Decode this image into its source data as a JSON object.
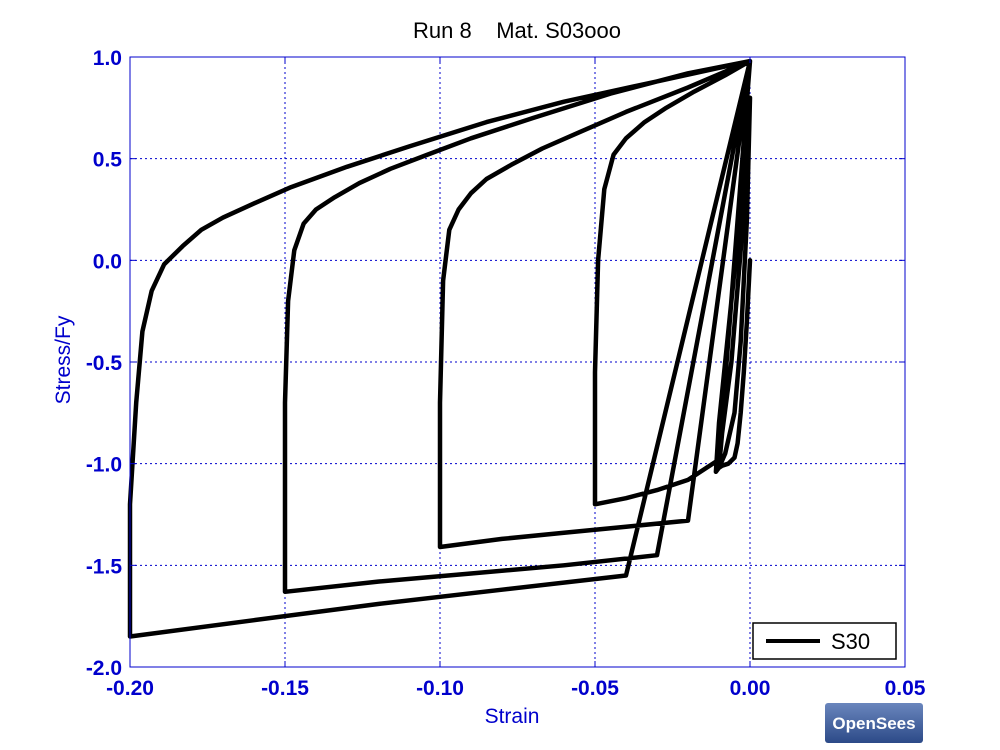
{
  "chart_data": {
    "type": "line",
    "title": "Run 8    Mat. S03ooo",
    "xlabel": "Strain",
    "ylabel": "Stress/Fy",
    "xlim": [
      -0.2,
      0.05
    ],
    "ylim": [
      -2.0,
      1.0
    ],
    "x_ticks": [
      "-0.20",
      "-0.15",
      "-0.10",
      "-0.05",
      "0.00",
      "0.05"
    ],
    "y_ticks": [
      "1.0",
      "0.5",
      "0.0",
      "-0.5",
      "-1.0",
      "-1.5",
      "-2.0"
    ],
    "x_tick_values": [
      -0.2,
      -0.15,
      -0.1,
      -0.05,
      0.0,
      0.05
    ],
    "y_tick_values": [
      1.0,
      0.5,
      0.0,
      -0.5,
      -1.0,
      -1.5,
      -2.0
    ],
    "grid": true,
    "legend": "bottom-right",
    "colors": {
      "axis_text": "#0000cc",
      "grid": "#0000cc",
      "series": "#000000",
      "logo": "#3a5a96"
    },
    "series": [
      {
        "name": "S30",
        "x": [
          0.0,
          -0.001,
          -0.002,
          -0.003,
          -0.004,
          -0.005,
          -0.007,
          -0.009,
          -0.01,
          -0.009,
          -0.006,
          -0.003,
          -0.001,
          0.0,
          -0.001,
          -0.003,
          -0.005,
          -0.008,
          -0.01,
          -0.011,
          -0.01,
          -0.007,
          -0.004,
          -0.002,
          -0.001,
          0.0,
          -0.01,
          -0.02,
          -0.03,
          -0.04,
          -0.05,
          -0.05,
          -0.049,
          -0.047,
          -0.044,
          -0.04,
          -0.034,
          -0.027,
          -0.018,
          -0.008,
          0.0,
          -0.02,
          -0.04,
          -0.06,
          -0.08,
          -0.1,
          -0.1,
          -0.099,
          -0.097,
          -0.094,
          -0.09,
          -0.085,
          -0.077,
          -0.067,
          -0.055,
          -0.04,
          -0.02,
          0.0,
          -0.03,
          -0.06,
          -0.09,
          -0.12,
          -0.15,
          -0.15,
          -0.149,
          -0.147,
          -0.144,
          -0.14,
          -0.134,
          -0.126,
          -0.116,
          -0.104,
          -0.09,
          -0.07,
          -0.045,
          -0.02,
          0.0,
          -0.04,
          -0.08,
          -0.12,
          -0.16,
          -0.2,
          -0.2,
          -0.198,
          -0.196,
          -0.193,
          -0.189,
          -0.183,
          -0.177,
          -0.17,
          -0.16,
          -0.148,
          -0.13,
          -0.11,
          -0.085,
          -0.06,
          -0.03,
          0.0
        ],
        "y": [
          0.0,
          -0.3,
          -0.55,
          -0.75,
          -0.9,
          -0.97,
          -1.0,
          -1.01,
          -1.02,
          -0.85,
          -0.5,
          0.05,
          0.5,
          0.8,
          0.2,
          -0.4,
          -0.75,
          -0.95,
          -1.02,
          -1.04,
          -0.8,
          -0.35,
          0.1,
          0.5,
          0.8,
          0.98,
          -0.98,
          -1.08,
          -1.13,
          -1.17,
          -1.2,
          -0.55,
          0.0,
          0.35,
          0.52,
          0.6,
          0.68,
          0.75,
          0.83,
          0.91,
          0.98,
          -1.28,
          -1.31,
          -1.34,
          -1.37,
          -1.41,
          -0.7,
          -0.1,
          0.15,
          0.25,
          0.33,
          0.4,
          0.47,
          0.55,
          0.63,
          0.73,
          0.85,
          0.98,
          -1.45,
          -1.5,
          -1.54,
          -1.58,
          -1.63,
          -0.7,
          -0.2,
          0.05,
          0.18,
          0.25,
          0.31,
          0.38,
          0.45,
          0.52,
          0.6,
          0.7,
          0.82,
          0.92,
          0.98,
          -1.55,
          -1.62,
          -1.69,
          -1.77,
          -1.85,
          -1.2,
          -0.7,
          -0.35,
          -0.15,
          -0.02,
          0.07,
          0.15,
          0.21,
          0.28,
          0.36,
          0.46,
          0.56,
          0.68,
          0.78,
          0.88,
          0.98
        ]
      }
    ],
    "logo_text": "OpenSees"
  }
}
